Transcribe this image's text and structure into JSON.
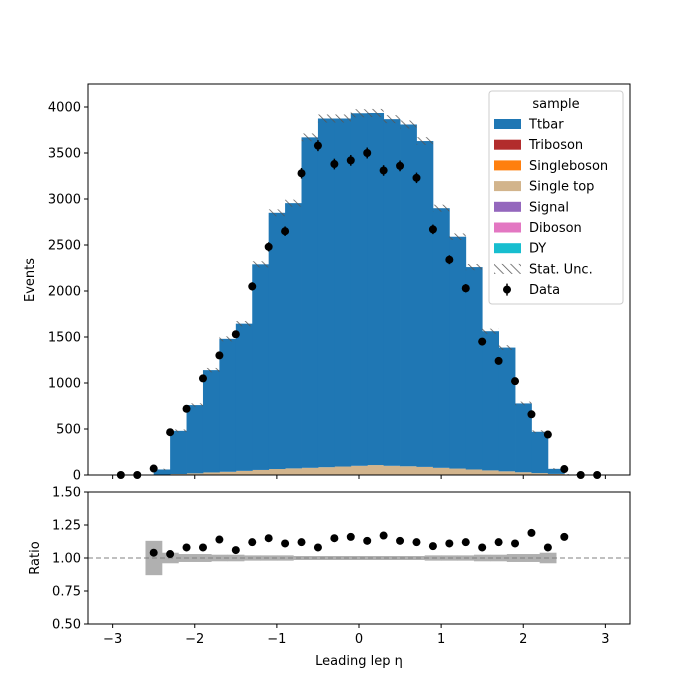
{
  "chart_data": [
    {
      "type": "bar",
      "stacked": true,
      "xlabel": "Leading lep η",
      "ylabel": "Events",
      "xlim": [
        -3.3,
        3.3
      ],
      "ylim": [
        0,
        4250
      ],
      "xticks": [
        -3,
        -2,
        -1,
        0,
        1,
        2,
        3
      ],
      "yticks": [
        0,
        500,
        1000,
        1500,
        2000,
        2500,
        3000,
        3500,
        4000
      ],
      "bin_edges": [
        -2.7,
        -2.5,
        -2.3,
        -2.1,
        -1.9,
        -1.7,
        -1.5,
        -1.3,
        -1.1,
        -0.9,
        -0.7,
        -0.5,
        -0.3,
        -0.1,
        0.1,
        0.3,
        0.5,
        0.7,
        0.9,
        1.1,
        1.3,
        1.5,
        1.7,
        1.9,
        2.1,
        2.3,
        2.5,
        2.7
      ],
      "series": [
        {
          "name": "Single top",
          "color": "#d2b48c",
          "values": [
            0,
            2,
            10,
            18,
            28,
            35,
            45,
            55,
            65,
            72,
            78,
            85,
            92,
            100,
            108,
            100,
            95,
            88,
            78,
            70,
            60,
            50,
            40,
            30,
            20,
            12,
            2
          ]
        },
        {
          "name": "Ttbar",
          "color": "#1f77b4",
          "values": [
            0,
            58,
            470,
            742,
            1112,
            1445,
            1600,
            2235,
            2785,
            2883,
            3592,
            3790,
            3783,
            3832,
            3827,
            3768,
            3715,
            3542,
            2822,
            2520,
            2200,
            1513,
            1345,
            748,
            450,
            55,
            0
          ]
        }
      ],
      "legend_title": "sample",
      "legend": [
        {
          "name": "Ttbar",
          "color": "#1f77b4"
        },
        {
          "name": "Triboson",
          "color": "#b22c2c"
        },
        {
          "name": "Singleboson",
          "color": "#ff7f0e"
        },
        {
          "name": "Single top",
          "color": "#d2b48c"
        },
        {
          "name": "Signal",
          "color": "#9467bd"
        },
        {
          "name": "Diboson",
          "color": "#e377c2"
        },
        {
          "name": "DY",
          "color": "#17becf"
        },
        {
          "name": "Stat. Unc.",
          "style": "hatch"
        },
        {
          "name": "Data",
          "style": "errorbar"
        }
      ],
      "legend_position": "top-right",
      "data": {
        "x": [
          -2.9,
          -2.7,
          -2.5,
          -2.3,
          -2.1,
          -1.9,
          -1.7,
          -1.5,
          -1.3,
          -1.1,
          -0.9,
          -0.7,
          -0.5,
          -0.3,
          -0.1,
          0.1,
          0.3,
          0.5,
          0.7,
          0.9,
          1.1,
          1.3,
          1.5,
          1.7,
          1.9,
          2.1,
          2.3,
          2.5,
          2.7,
          2.9
        ],
        "y": [
          0,
          0,
          70,
          465,
          720,
          1050,
          1300,
          1530,
          2050,
          2480,
          2650,
          3280,
          3580,
          3380,
          3420,
          3500,
          3310,
          3360,
          3230,
          2670,
          2340,
          2030,
          1450,
          1240,
          1020,
          660,
          440,
          65,
          0,
          0
        ]
      }
    },
    {
      "type": "scatter",
      "xlabel": "Leading lep η",
      "ylabel": "Ratio",
      "xlim": [
        -3.3,
        3.3
      ],
      "ylim": [
        0.5,
        1.5
      ],
      "yticks": [
        "0.50",
        "0.75",
        "1.00",
        "1.25",
        "1.50"
      ],
      "reference_line": 1.0,
      "x": [
        -2.5,
        -2.3,
        -2.1,
        -1.9,
        -1.7,
        -1.5,
        -1.3,
        -1.1,
        -0.9,
        -0.7,
        -0.5,
        -0.3,
        -0.1,
        0.1,
        0.3,
        0.5,
        0.7,
        0.9,
        1.1,
        1.3,
        1.5,
        1.7,
        1.9,
        2.1,
        2.3,
        2.5
      ],
      "y": [
        1.04,
        1.03,
        1.08,
        1.08,
        1.14,
        1.06,
        1.12,
        1.15,
        1.11,
        1.12,
        1.08,
        1.15,
        1.16,
        1.13,
        1.17,
        1.13,
        1.12,
        1.09,
        1.11,
        1.12,
        1.08,
        1.12,
        1.11,
        1.19,
        1.08,
        1.16
      ],
      "unc_band": [
        0.13,
        0.04,
        0.03,
        0.03,
        0.025,
        0.025,
        0.02,
        0.02,
        0.02,
        0.015,
        0.015,
        0.015,
        0.015,
        0.015,
        0.015,
        0.015,
        0.015,
        0.02,
        0.02,
        0.02,
        0.025,
        0.025,
        0.03,
        0.03,
        0.04,
        0.0
      ]
    }
  ]
}
